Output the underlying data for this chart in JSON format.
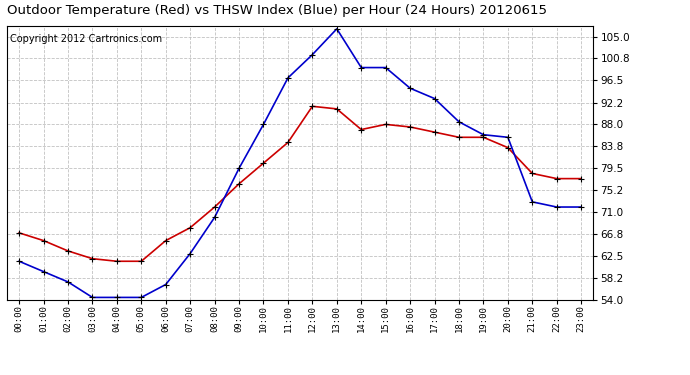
{
  "title": "Outdoor Temperature (Red) vs THSW Index (Blue) per Hour (24 Hours) 20120615",
  "copyright": "Copyright 2012 Cartronics.com",
  "hours": [
    0,
    1,
    2,
    3,
    4,
    5,
    6,
    7,
    8,
    9,
    10,
    11,
    12,
    13,
    14,
    15,
    16,
    17,
    18,
    19,
    20,
    21,
    22,
    23
  ],
  "red_temp": [
    67.0,
    65.5,
    63.5,
    62.0,
    61.5,
    61.5,
    65.5,
    68.0,
    72.0,
    76.5,
    80.5,
    84.5,
    91.5,
    91.0,
    87.0,
    88.0,
    87.5,
    86.5,
    85.5,
    85.5,
    83.5,
    78.5,
    77.5,
    77.5
  ],
  "blue_thsw": [
    61.5,
    59.5,
    57.5,
    54.5,
    54.5,
    54.5,
    57.0,
    63.0,
    70.0,
    79.5,
    88.0,
    97.0,
    101.5,
    106.5,
    99.0,
    99.0,
    95.0,
    93.0,
    88.5,
    86.0,
    85.5,
    73.0,
    72.0,
    72.0
  ],
  "ylim_min": 54.0,
  "ylim_max": 107.0,
  "yticks": [
    54.0,
    58.2,
    62.5,
    66.8,
    71.0,
    75.2,
    79.5,
    83.8,
    88.0,
    92.2,
    96.5,
    100.8,
    105.0
  ],
  "bg_color": "#ffffff",
  "plot_bg": "#ffffff",
  "grid_color": "#bbbbbb",
  "red_color": "#cc0000",
  "blue_color": "#0000cc",
  "title_fontsize": 9.5,
  "copyright_fontsize": 7
}
